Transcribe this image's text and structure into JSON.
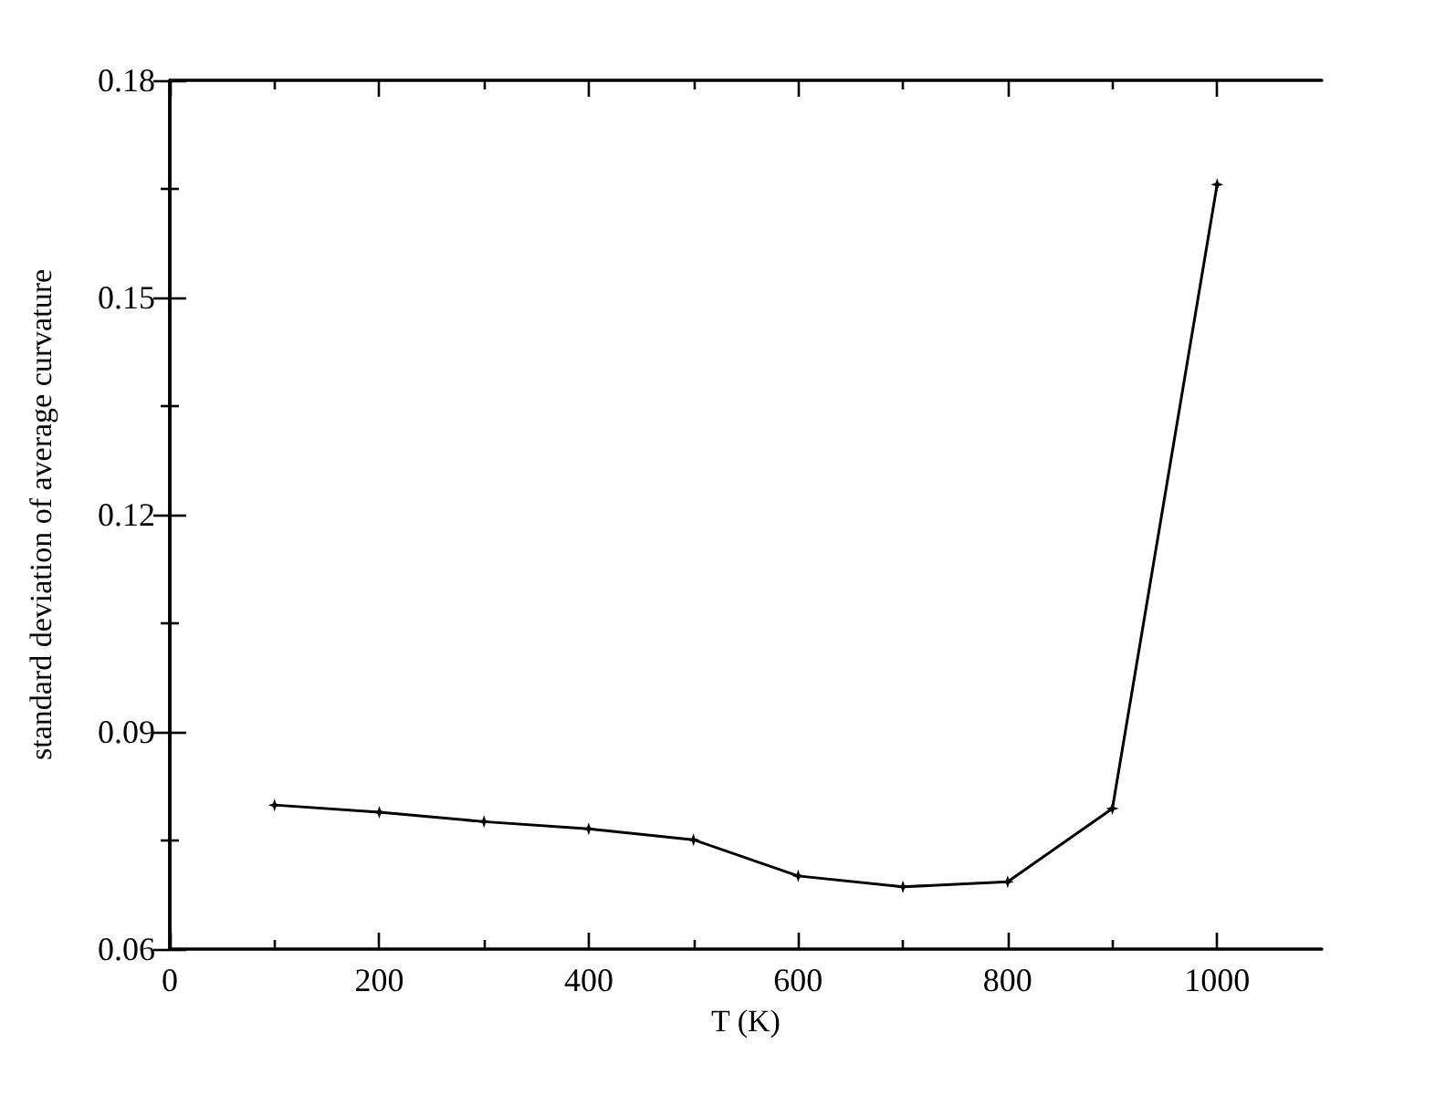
{
  "chart_data": {
    "type": "line",
    "xlabel": "T (K)",
    "ylabel": "standard deviation of average curvature",
    "x": [
      100,
      200,
      300,
      400,
      500,
      600,
      700,
      800,
      900,
      1000
    ],
    "series": [
      {
        "color": "#000000",
        "values": [
          0.0799,
          0.0789,
          0.0776,
          0.0766,
          0.0751,
          0.0701,
          0.0686,
          0.0693,
          0.0794,
          0.1656
        ]
      }
    ],
    "xlim": [
      0,
      1100
    ],
    "xticks": [
      0,
      200,
      400,
      600,
      800,
      1000
    ],
    "ylim": [
      0.06,
      0.18
    ],
    "yticks": [
      0.06,
      0.09,
      0.12,
      0.15,
      0.18
    ],
    "marker": "star",
    "line_style": "solid"
  }
}
